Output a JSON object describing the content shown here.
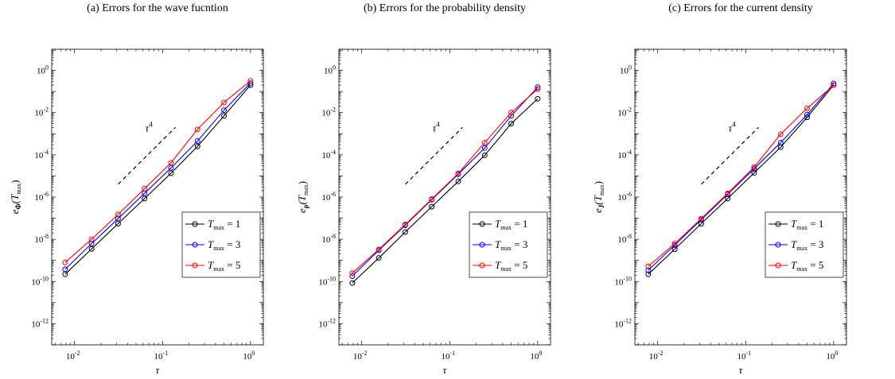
{
  "chart_data": [
    {
      "type": "line",
      "title": "(a) Errors for the wave fucntion",
      "xlabel": "τ",
      "ylabel_base": "e",
      "ylabel_sub": "Φ",
      "ylabel_arg": "(T",
      "ylabel_arg_sub": "max",
      "ylabel_close": ")",
      "xscale": "log",
      "yscale": "log",
      "xlim": [
        0.0055,
        1.4
      ],
      "ylim": [
        1e-13,
        10
      ],
      "x_ticks": [
        0.01,
        0.1,
        1
      ],
      "x_tick_labels": [
        {
          "base": "10",
          "exp": "-2"
        },
        {
          "base": "10",
          "exp": "-1"
        },
        {
          "base": "10",
          "exp": "0"
        }
      ],
      "y_ticks": [
        1e-12,
        1e-10,
        1e-08,
        1e-06,
        0.0001,
        0.01,
        1
      ],
      "y_tick_labels": [
        {
          "base": "10",
          "exp": "-12"
        },
        {
          "base": "10",
          "exp": "-10"
        },
        {
          "base": "10",
          "exp": "-8"
        },
        {
          "base": "10",
          "exp": "-6"
        },
        {
          "base": "10",
          "exp": "-4"
        },
        {
          "base": "10",
          "exp": "-2"
        },
        {
          "base": "10",
          "exp": "0"
        }
      ],
      "x": [
        0.0078125,
        0.015625,
        0.03125,
        0.0625,
        0.125,
        0.25,
        0.5,
        1
      ],
      "series": [
        {
          "name_var": "T",
          "name_sub": "max",
          "name_rest": " = 1",
          "color": "#000000",
          "values": [
            2.2e-10,
            3.5e-09,
            5.5e-08,
            8.5e-07,
            1.35e-05,
            0.00025,
            0.007,
            0.2
          ]
        },
        {
          "name_var": "T",
          "name_sub": "max",
          "name_rest": " = 3",
          "color": "#0000ff",
          "values": [
            3.8e-10,
            6.2e-09,
            9.5e-08,
            1.5e-06,
            2.4e-05,
            0.00045,
            0.013,
            0.25
          ]
        },
        {
          "name_var": "T",
          "name_sub": "max",
          "name_rest": " = 5",
          "color": "#ff0000",
          "values": [
            8e-10,
            1e-08,
            1.5e-07,
            2.5e-06,
            4.2e-05,
            0.0016,
            0.03,
            0.32
          ]
        }
      ],
      "slope_line": {
        "x": [
          0.03125,
          0.14
        ],
        "y": [
          4e-06,
          0.002
        ],
        "style": "dashed"
      },
      "slope_label": {
        "base": "τ",
        "exp": "4",
        "x": 0.07,
        "y": 0.0013
      },
      "legend": "lower-right",
      "grid": false
    },
    {
      "type": "line",
      "title": "(b) Errors for the probability density",
      "xlabel": "τ",
      "ylabel_base": "e",
      "ylabel_sub": "ρ",
      "ylabel_arg": "(T",
      "ylabel_arg_sub": "max",
      "ylabel_close": ")",
      "xscale": "log",
      "yscale": "log",
      "xlim": [
        0.0055,
        1.4
      ],
      "ylim": [
        1e-13,
        10
      ],
      "x_ticks": [
        0.01,
        0.1,
        1
      ],
      "x_tick_labels": [
        {
          "base": "10",
          "exp": "-2"
        },
        {
          "base": "10",
          "exp": "-1"
        },
        {
          "base": "10",
          "exp": "0"
        }
      ],
      "y_ticks": [
        1e-12,
        1e-10,
        1e-08,
        1e-06,
        0.0001,
        0.01,
        1
      ],
      "y_tick_labels": [
        {
          "base": "10",
          "exp": "-12"
        },
        {
          "base": "10",
          "exp": "-10"
        },
        {
          "base": "10",
          "exp": "-8"
        },
        {
          "base": "10",
          "exp": "-6"
        },
        {
          "base": "10",
          "exp": "-4"
        },
        {
          "base": "10",
          "exp": "-2"
        },
        {
          "base": "10",
          "exp": "0"
        }
      ],
      "x": [
        0.0078125,
        0.015625,
        0.03125,
        0.0625,
        0.125,
        0.25,
        0.5,
        1
      ],
      "series": [
        {
          "name_var": "T",
          "name_sub": "max",
          "name_rest": " = 1",
          "color": "#000000",
          "values": [
            8.5e-11,
            1.3e-09,
            2.2e-08,
            3.5e-07,
            5.5e-06,
            9.5e-05,
            0.003,
            0.045
          ]
        },
        {
          "name_var": "T",
          "name_sub": "max",
          "name_rest": " = 3",
          "color": "#0000ff",
          "values": [
            1.8e-10,
            3e-09,
            4.6e-08,
            7.5e-07,
            1.2e-05,
            0.00021,
            0.007,
            0.16
          ]
        },
        {
          "name_var": "T",
          "name_sub": "max",
          "name_rest": " = 5",
          "color": "#ff0000",
          "values": [
            2.5e-10,
            3.3e-09,
            5e-08,
            8e-07,
            1.3e-05,
            0.00038,
            0.01,
            0.13
          ]
        }
      ],
      "slope_line": {
        "x": [
          0.03125,
          0.14
        ],
        "y": [
          4e-06,
          0.002
        ],
        "style": "dashed"
      },
      "slope_label": {
        "base": "τ",
        "exp": "4",
        "x": 0.07,
        "y": 0.0013
      },
      "legend": "lower-right",
      "grid": false
    },
    {
      "type": "line",
      "title": "(c) Errors for the current density",
      "xlabel": "τ",
      "ylabel_base": "e",
      "ylabel_sub": "J",
      "ylabel_arg": "(T",
      "ylabel_arg_sub": "max",
      "ylabel_close": ")",
      "xscale": "log",
      "yscale": "log",
      "xlim": [
        0.0055,
        1.4
      ],
      "ylim": [
        1e-13,
        10
      ],
      "x_ticks": [
        0.01,
        0.1,
        1
      ],
      "x_tick_labels": [
        {
          "base": "10",
          "exp": "-2"
        },
        {
          "base": "10",
          "exp": "-1"
        },
        {
          "base": "10",
          "exp": "0"
        }
      ],
      "y_ticks": [
        1e-12,
        1e-10,
        1e-08,
        1e-06,
        0.0001,
        0.01,
        1
      ],
      "y_tick_labels": [
        {
          "base": "10",
          "exp": "-12"
        },
        {
          "base": "10",
          "exp": "-10"
        },
        {
          "base": "10",
          "exp": "-8"
        },
        {
          "base": "10",
          "exp": "-6"
        },
        {
          "base": "10",
          "exp": "-4"
        },
        {
          "base": "10",
          "exp": "-2"
        },
        {
          "base": "10",
          "exp": "0"
        }
      ],
      "x": [
        0.0078125,
        0.015625,
        0.03125,
        0.0625,
        0.125,
        0.25,
        0.5,
        1
      ],
      "series": [
        {
          "name_var": "T",
          "name_sub": "max",
          "name_rest": " = 1",
          "color": "#000000",
          "values": [
            2.2e-10,
            3.4e-09,
            5.5e-08,
            8.5e-07,
            1.4e-05,
            0.00023,
            0.006,
            0.2
          ]
        },
        {
          "name_var": "T",
          "name_sub": "max",
          "name_rest": " = 3",
          "color": "#0000ff",
          "values": [
            3.4e-10,
            5.3e-09,
            8.5e-08,
            1.35e-06,
            2.2e-05,
            0.00038,
            0.008,
            0.24
          ]
        },
        {
          "name_var": "T",
          "name_sub": "max",
          "name_rest": " = 5",
          "color": "#ff0000",
          "values": [
            5.2e-10,
            6.2e-09,
            9.5e-08,
            1.5e-06,
            2.6e-05,
            0.00095,
            0.016,
            0.2
          ]
        }
      ],
      "slope_line": {
        "x": [
          0.03125,
          0.14
        ],
        "y": [
          4e-06,
          0.002
        ],
        "style": "dashed"
      },
      "slope_label": {
        "base": "τ",
        "exp": "4",
        "x": 0.07,
        "y": 0.0013
      },
      "legend": "lower-right",
      "grid": false
    }
  ]
}
